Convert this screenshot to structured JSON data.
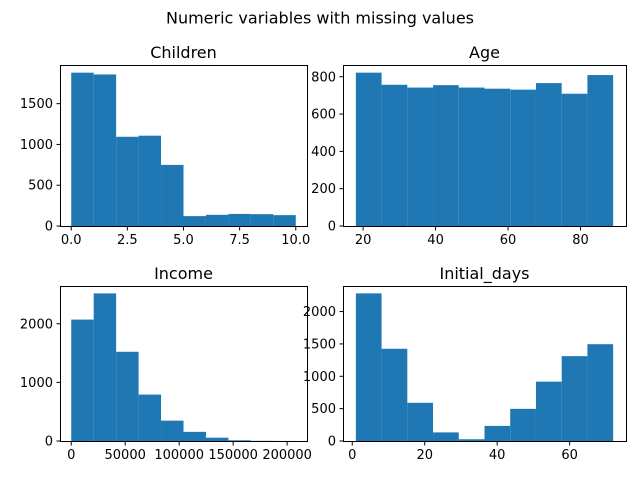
{
  "figure": {
    "suptitle": "Numeric variables with missing values"
  },
  "colors": {
    "bar": "#1f77b4",
    "axes": "#000000",
    "background": "#ffffff"
  },
  "chart_data": [
    {
      "type": "bar",
      "subtype": "histogram",
      "title": "Children",
      "xlabel": "",
      "ylabel": "",
      "bin_edges": [
        0,
        1,
        2,
        3,
        4,
        5,
        6,
        7,
        8,
        9,
        10
      ],
      "values": [
        1880,
        1858,
        1094,
        1107,
        749,
        121,
        137,
        148,
        145,
        133
      ],
      "xlim": [
        -0.5,
        10.5
      ],
      "ylim": [
        0,
        1974
      ],
      "xticks": [
        0,
        2.5,
        5,
        7.5,
        10
      ],
      "xtick_labels": [
        "0.0",
        "2.5",
        "5.0",
        "7.5",
        "10.0"
      ],
      "yticks": [
        0,
        500,
        1000,
        1500
      ],
      "ytick_labels": [
        "0",
        "500",
        "1000",
        "1500"
      ],
      "grid": false,
      "legend": "none"
    },
    {
      "type": "bar",
      "subtype": "histogram",
      "title": "Age",
      "xlabel": "",
      "ylabel": "",
      "bin_edges": [
        18,
        25.1,
        32.2,
        39.3,
        46.4,
        53.5,
        60.6,
        67.7,
        74.8,
        81.9,
        89
      ],
      "values": [
        822,
        757,
        742,
        755,
        742,
        736,
        731,
        766,
        709,
        809
      ],
      "xlim": [
        14.45,
        92.55
      ],
      "ylim": [
        0,
        863
      ],
      "xticks": [
        20,
        40,
        60,
        80
      ],
      "xtick_labels": [
        "20",
        "40",
        "60",
        "80"
      ],
      "yticks": [
        0,
        200,
        400,
        600,
        800
      ],
      "ytick_labels": [
        "0",
        "200",
        "400",
        "600",
        "800"
      ],
      "grid": false,
      "legend": "none"
    },
    {
      "type": "bar",
      "subtype": "histogram",
      "title": "Income",
      "xlabel": "",
      "ylabel": "",
      "bin_edges": [
        0,
        20800,
        41600,
        62400,
        83200,
        104000,
        124800,
        145600,
        166400,
        187200,
        208000
      ],
      "values": [
        2071,
        2518,
        1522,
        792,
        347,
        156,
        56,
        12,
        3,
        1
      ],
      "xlim": [
        -10400,
        218400
      ],
      "ylim": [
        0,
        2644
      ],
      "xticks": [
        0,
        50000,
        100000,
        150000,
        200000
      ],
      "xtick_labels": [
        "0",
        "50000",
        "100000",
        "150000",
        "200000"
      ],
      "yticks": [
        0,
        1000,
        2000
      ],
      "ytick_labels": [
        "0",
        "1000",
        "2000"
      ],
      "grid": false,
      "legend": "none"
    },
    {
      "type": "bar",
      "subtype": "histogram",
      "title": "Initial_days",
      "xlabel": "",
      "ylabel": "",
      "bin_edges": [
        1,
        8.1,
        15.2,
        22.3,
        29.4,
        36.5,
        43.6,
        50.7,
        57.8,
        64.9,
        72
      ],
      "values": [
        2281,
        1425,
        590,
        133,
        27,
        233,
        497,
        917,
        1311,
        1496
      ],
      "xlim": [
        -2.55,
        75.55
      ],
      "ylim": [
        0,
        2395
      ],
      "xticks": [
        0,
        20,
        40,
        60
      ],
      "xtick_labels": [
        "0",
        "20",
        "40",
        "60"
      ],
      "yticks": [
        0,
        500,
        1000,
        1500,
        2000
      ],
      "ytick_labels": [
        "0",
        "500",
        "1000",
        "1500",
        "2000"
      ],
      "grid": false,
      "legend": "none"
    }
  ]
}
